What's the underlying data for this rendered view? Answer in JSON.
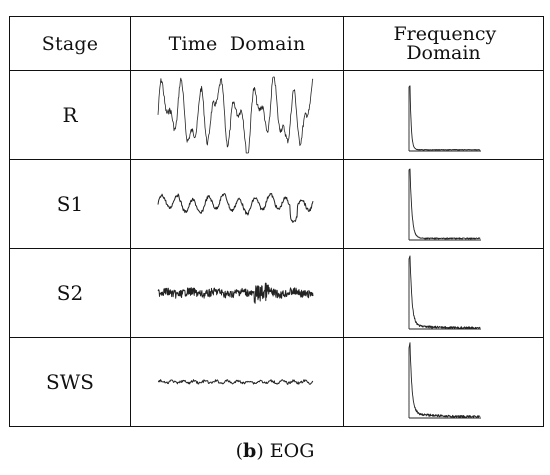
{
  "table": {
    "headers": {
      "stage": "Stage",
      "time": "Time  Domain",
      "frequency": "Frequency Domain"
    },
    "rows": [
      {
        "stage": "R",
        "wave": "rem-large-irregular",
        "spectrum": "sharp-low-frequency-peak"
      },
      {
        "stage": "S1",
        "wave": "moderate-oscillation",
        "spectrum": "low-frequency-peak"
      },
      {
        "stage": "S2",
        "wave": "dense-small-noise",
        "spectrum": "low-frequency-peak-with-noise"
      },
      {
        "stage": "SWS",
        "wave": "near-flat-line",
        "spectrum": "low-frequency-peak-with-tail"
      }
    ]
  },
  "caption": {
    "letter": "b",
    "text": "EOG"
  }
}
